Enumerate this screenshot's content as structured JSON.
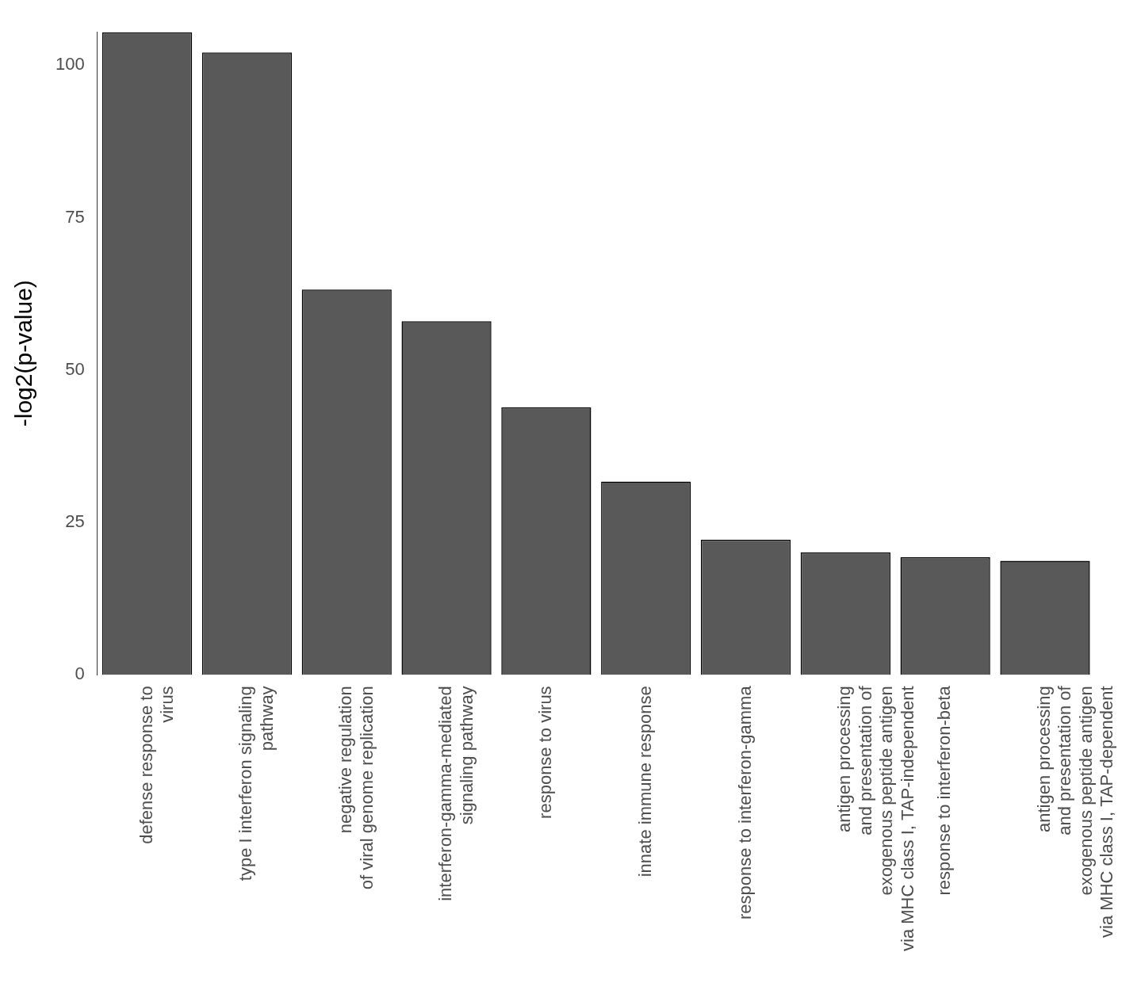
{
  "chart_data": {
    "type": "bar",
    "y_label": "-log2(p-value)",
    "categories": [
      [
        "defense response to",
        "virus"
      ],
      [
        "type I interferon signaling",
        "pathway"
      ],
      [
        "negative regulation",
        "of viral genome replication"
      ],
      [
        "interferon-gamma-mediated",
        "signaling pathway"
      ],
      [
        "response to virus"
      ],
      [
        "innate immune response"
      ],
      [
        "response to interferon-gamma"
      ],
      [
        "antigen processing",
        "and presentation of",
        "exogenous peptide antigen",
        "via MHC class I, TAP-independent"
      ],
      [
        "response to interferon-beta"
      ],
      [
        "antigen processing",
        "and presentation of",
        "exogenous peptide antigen",
        "via MHC class I, TAP-dependent"
      ]
    ],
    "values": [
      105.4,
      102.1,
      63.2,
      58.0,
      43.9,
      31.7,
      22.2,
      20.1,
      19.3,
      18.7
    ],
    "color": "#595959",
    "ylim": [
      0,
      105.5
    ],
    "yticks": [
      0,
      25,
      50,
      75,
      100
    ],
    "grid": false
  }
}
